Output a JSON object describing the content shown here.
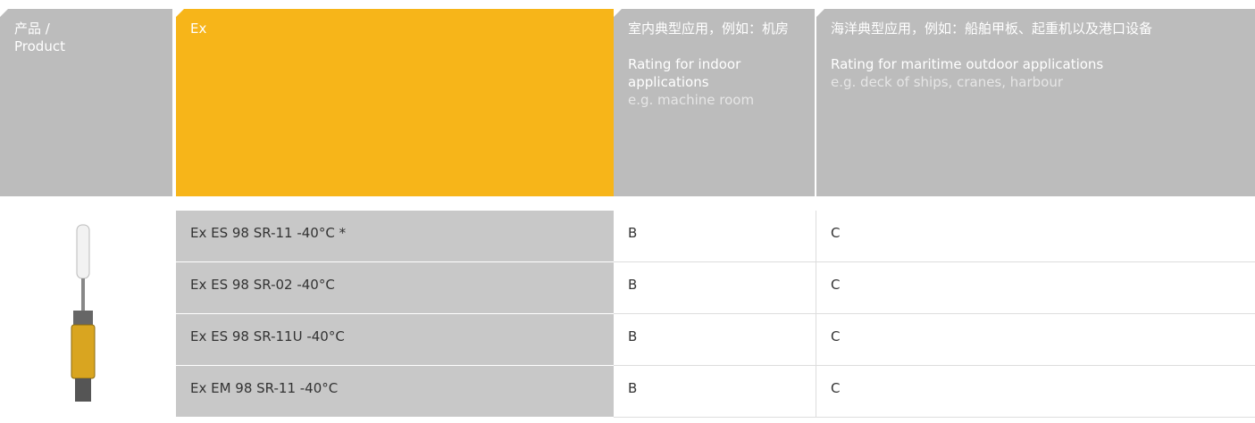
{
  "header": {
    "product": [
      "产品 /",
      "Product"
    ],
    "ex": "Ex",
    "indoor": {
      "zh": "室内典型应用，例如：机房",
      "title": "Rating for indoor applications",
      "note": "e.g. machine room"
    },
    "maritime": {
      "zh": "海洋典型应用，例如：船舶甲板、起重机以及港口设备",
      "title": "Rating for maritime outdoor applications",
      "note": "e.g. deck of ships, cranes, harbour"
    }
  },
  "rows": [
    [
      "Ex ES 98 SR-11 -40°C *",
      "B",
      "C"
    ],
    [
      "Ex ES 98 SR-02 -40°C",
      "B",
      "C"
    ],
    [
      "Ex ES 98 SR-11U -40°C",
      "B",
      "C"
    ],
    [
      "Ex EM 98 SR-11 -40°C",
      "B",
      "C"
    ]
  ]
}
